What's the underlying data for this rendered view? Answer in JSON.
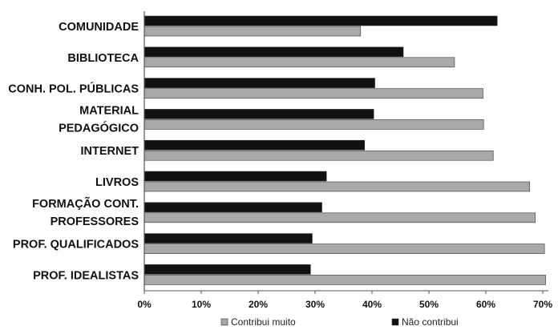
{
  "chart_data": {
    "type": "bar",
    "orientation": "horizontal",
    "category_labels": [
      [
        "COMUNIDADE"
      ],
      [
        "BIBLIOTECA"
      ],
      [
        "CONH. POL. PÚBLICAS"
      ],
      [
        "MATERIAL",
        "PEDAGÓGICO"
      ],
      [
        "INTERNET"
      ],
      [
        "LIVROS"
      ],
      [
        "FORMAÇÃO CONT.",
        "PROFESSORES"
      ],
      [
        "PROF. QUALIFICADOS"
      ],
      [
        "PROF. IDEALISTAS"
      ]
    ],
    "series": [
      {
        "name": "Não contribui",
        "color": "#111111",
        "values": [
          62.0,
          45.5,
          40.5,
          40.3,
          38.7,
          32.0,
          31.2,
          29.5,
          29.2
        ]
      },
      {
        "name": "Contribui muito",
        "color": "#a9a9a9",
        "values": [
          38.0,
          54.5,
          59.5,
          59.6,
          61.3,
          67.7,
          68.7,
          70.3,
          70.5
        ]
      }
    ],
    "x_ticks": [
      "0%",
      "10%",
      "20%",
      "30%",
      "40%",
      "50%",
      "60%",
      "70%"
    ],
    "xlim": [
      0,
      70
    ],
    "grid": false,
    "legend_position": "bottom",
    "legend_order": [
      "Contribui muito",
      "Não contribui"
    ]
  }
}
